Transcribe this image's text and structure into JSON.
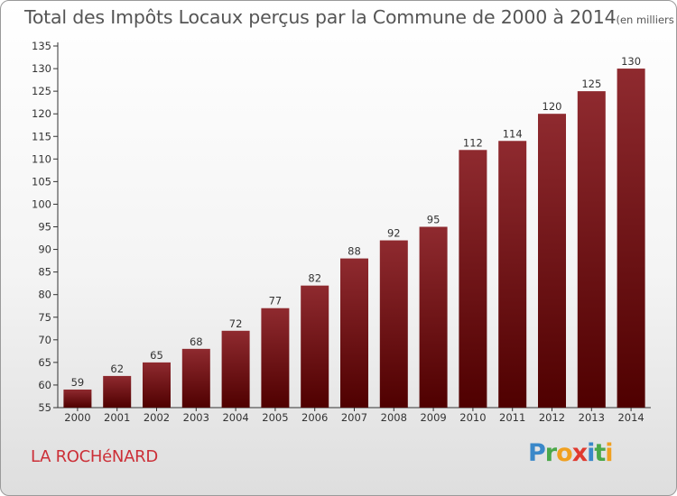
{
  "chart_data": {
    "type": "bar",
    "title": "Total des Impôts Locaux perçus par la Commune de 2000 à 2014",
    "title_unit": "(en milliers d'€)",
    "categories": [
      "2000",
      "2001",
      "2002",
      "2003",
      "2004",
      "2005",
      "2006",
      "2007",
      "2008",
      "2009",
      "2010",
      "2011",
      "2012",
      "2013",
      "2014"
    ],
    "values": [
      59,
      62,
      65,
      68,
      72,
      77,
      82,
      88,
      92,
      95,
      112,
      114,
      120,
      125,
      130
    ],
    "ylim": [
      55,
      135
    ],
    "yticks": [
      55,
      60,
      65,
      70,
      75,
      80,
      85,
      90,
      95,
      100,
      105,
      110,
      115,
      120,
      125,
      130,
      135
    ],
    "xlabel": "",
    "ylabel": "",
    "grid": false,
    "bar_color": "#8b1a1f"
  },
  "commune": "LA ROCHéNARD",
  "brand": {
    "letters": [
      "P",
      "r",
      "o",
      "x",
      "i",
      "t",
      "i"
    ]
  }
}
